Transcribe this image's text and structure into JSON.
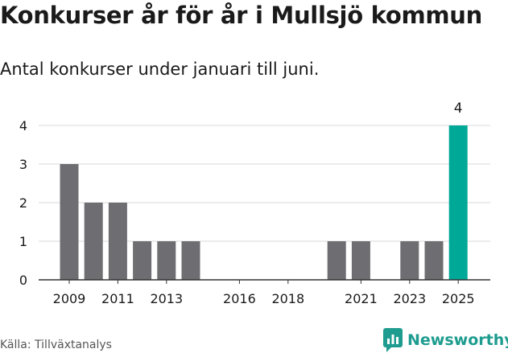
{
  "header": {
    "title": "Konkurser år för år i Mullsjö kommun",
    "subtitle": "Antal konkurser under januari till juni."
  },
  "footer": {
    "source": "Källa: Tillväxtanalys",
    "brand": "Newsworthy"
  },
  "colors": {
    "bar": "#6e6d72",
    "highlight": "#00a898",
    "grid": "#d9d9d9",
    "axis": "#333333",
    "brand": "#1e9c8f"
  },
  "chart_data": {
    "type": "bar",
    "title": "Konkurser år för år i Mullsjö kommun",
    "subtitle": "Antal konkurser under januari till juni.",
    "xlabel": "",
    "ylabel": "",
    "ylim": [
      0,
      4
    ],
    "yticks": [
      0,
      1,
      2,
      3,
      4
    ],
    "x_tick_labels": [
      "2009",
      "2011",
      "2013",
      "2016",
      "2018",
      "2021",
      "2023",
      "2025"
    ],
    "categories": [
      "2009",
      "2010",
      "2011",
      "2012",
      "2013",
      "2014",
      "2015",
      "2016",
      "2017",
      "2018",
      "2019",
      "2020",
      "2021",
      "2022",
      "2023",
      "2024",
      "2025"
    ],
    "values": [
      3,
      2,
      2,
      1,
      1,
      1,
      0,
      0,
      0,
      0,
      0,
      1,
      1,
      0,
      1,
      1,
      4
    ],
    "highlight": "2025",
    "data_labels": [
      {
        "category": "2025",
        "value": 4
      }
    ],
    "grid": true
  }
}
